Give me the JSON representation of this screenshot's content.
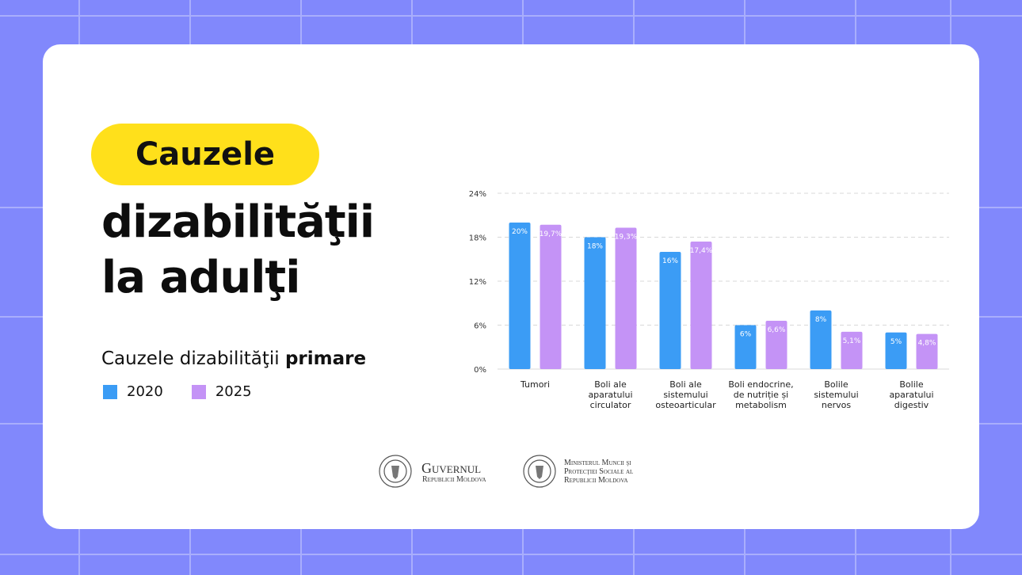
{
  "header": {
    "pill": "Cauzele",
    "title_line1": "dizabilităţii",
    "title_line2": "la adulţi"
  },
  "chart_data": {
    "type": "bar",
    "title": "Cauzele dizabilităţii",
    "title_bold": "primare",
    "categories": [
      "Tumori",
      "Boli ale\naparatului\ncirculator",
      "Boli ale\nsistemului\nosteoarticular",
      "Boli endocrine,\nde nutriție și\nmetabolism",
      "Bolile\nsistemului\nnervos",
      "Bolile\naparatului\ndigestiv"
    ],
    "series": [
      {
        "name": "2020",
        "color": "#3b9cf5",
        "values": [
          20,
          18,
          16,
          6,
          8,
          5
        ],
        "value_labels": [
          "20%",
          "18%",
          "16%",
          "6%",
          "8%",
          "5%"
        ]
      },
      {
        "name": "2025",
        "color": "#c493f6",
        "values": [
          19.7,
          19.3,
          17.4,
          6.6,
          5.1,
          4.8
        ],
        "value_labels": [
          "19,7%",
          "19,3%",
          "17,4%",
          "6,6%",
          "5,1%",
          "4,8%"
        ]
      }
    ],
    "ylim": [
      0,
      24
    ],
    "yticks": [
      {
        "value": 0,
        "label": "0%"
      },
      {
        "value": 6,
        "label": "6%"
      },
      {
        "value": 12,
        "label": "12%"
      },
      {
        "value": 18,
        "label": "18%"
      },
      {
        "value": 24,
        "label": "24%"
      }
    ],
    "grid": true
  },
  "footer": {
    "gov_name": "Guvernul",
    "gov_sub": "Republicii Moldova",
    "ministry": "Ministerul Muncii şi\nProtecţiei Sociale al\nRepublicii Moldova"
  }
}
